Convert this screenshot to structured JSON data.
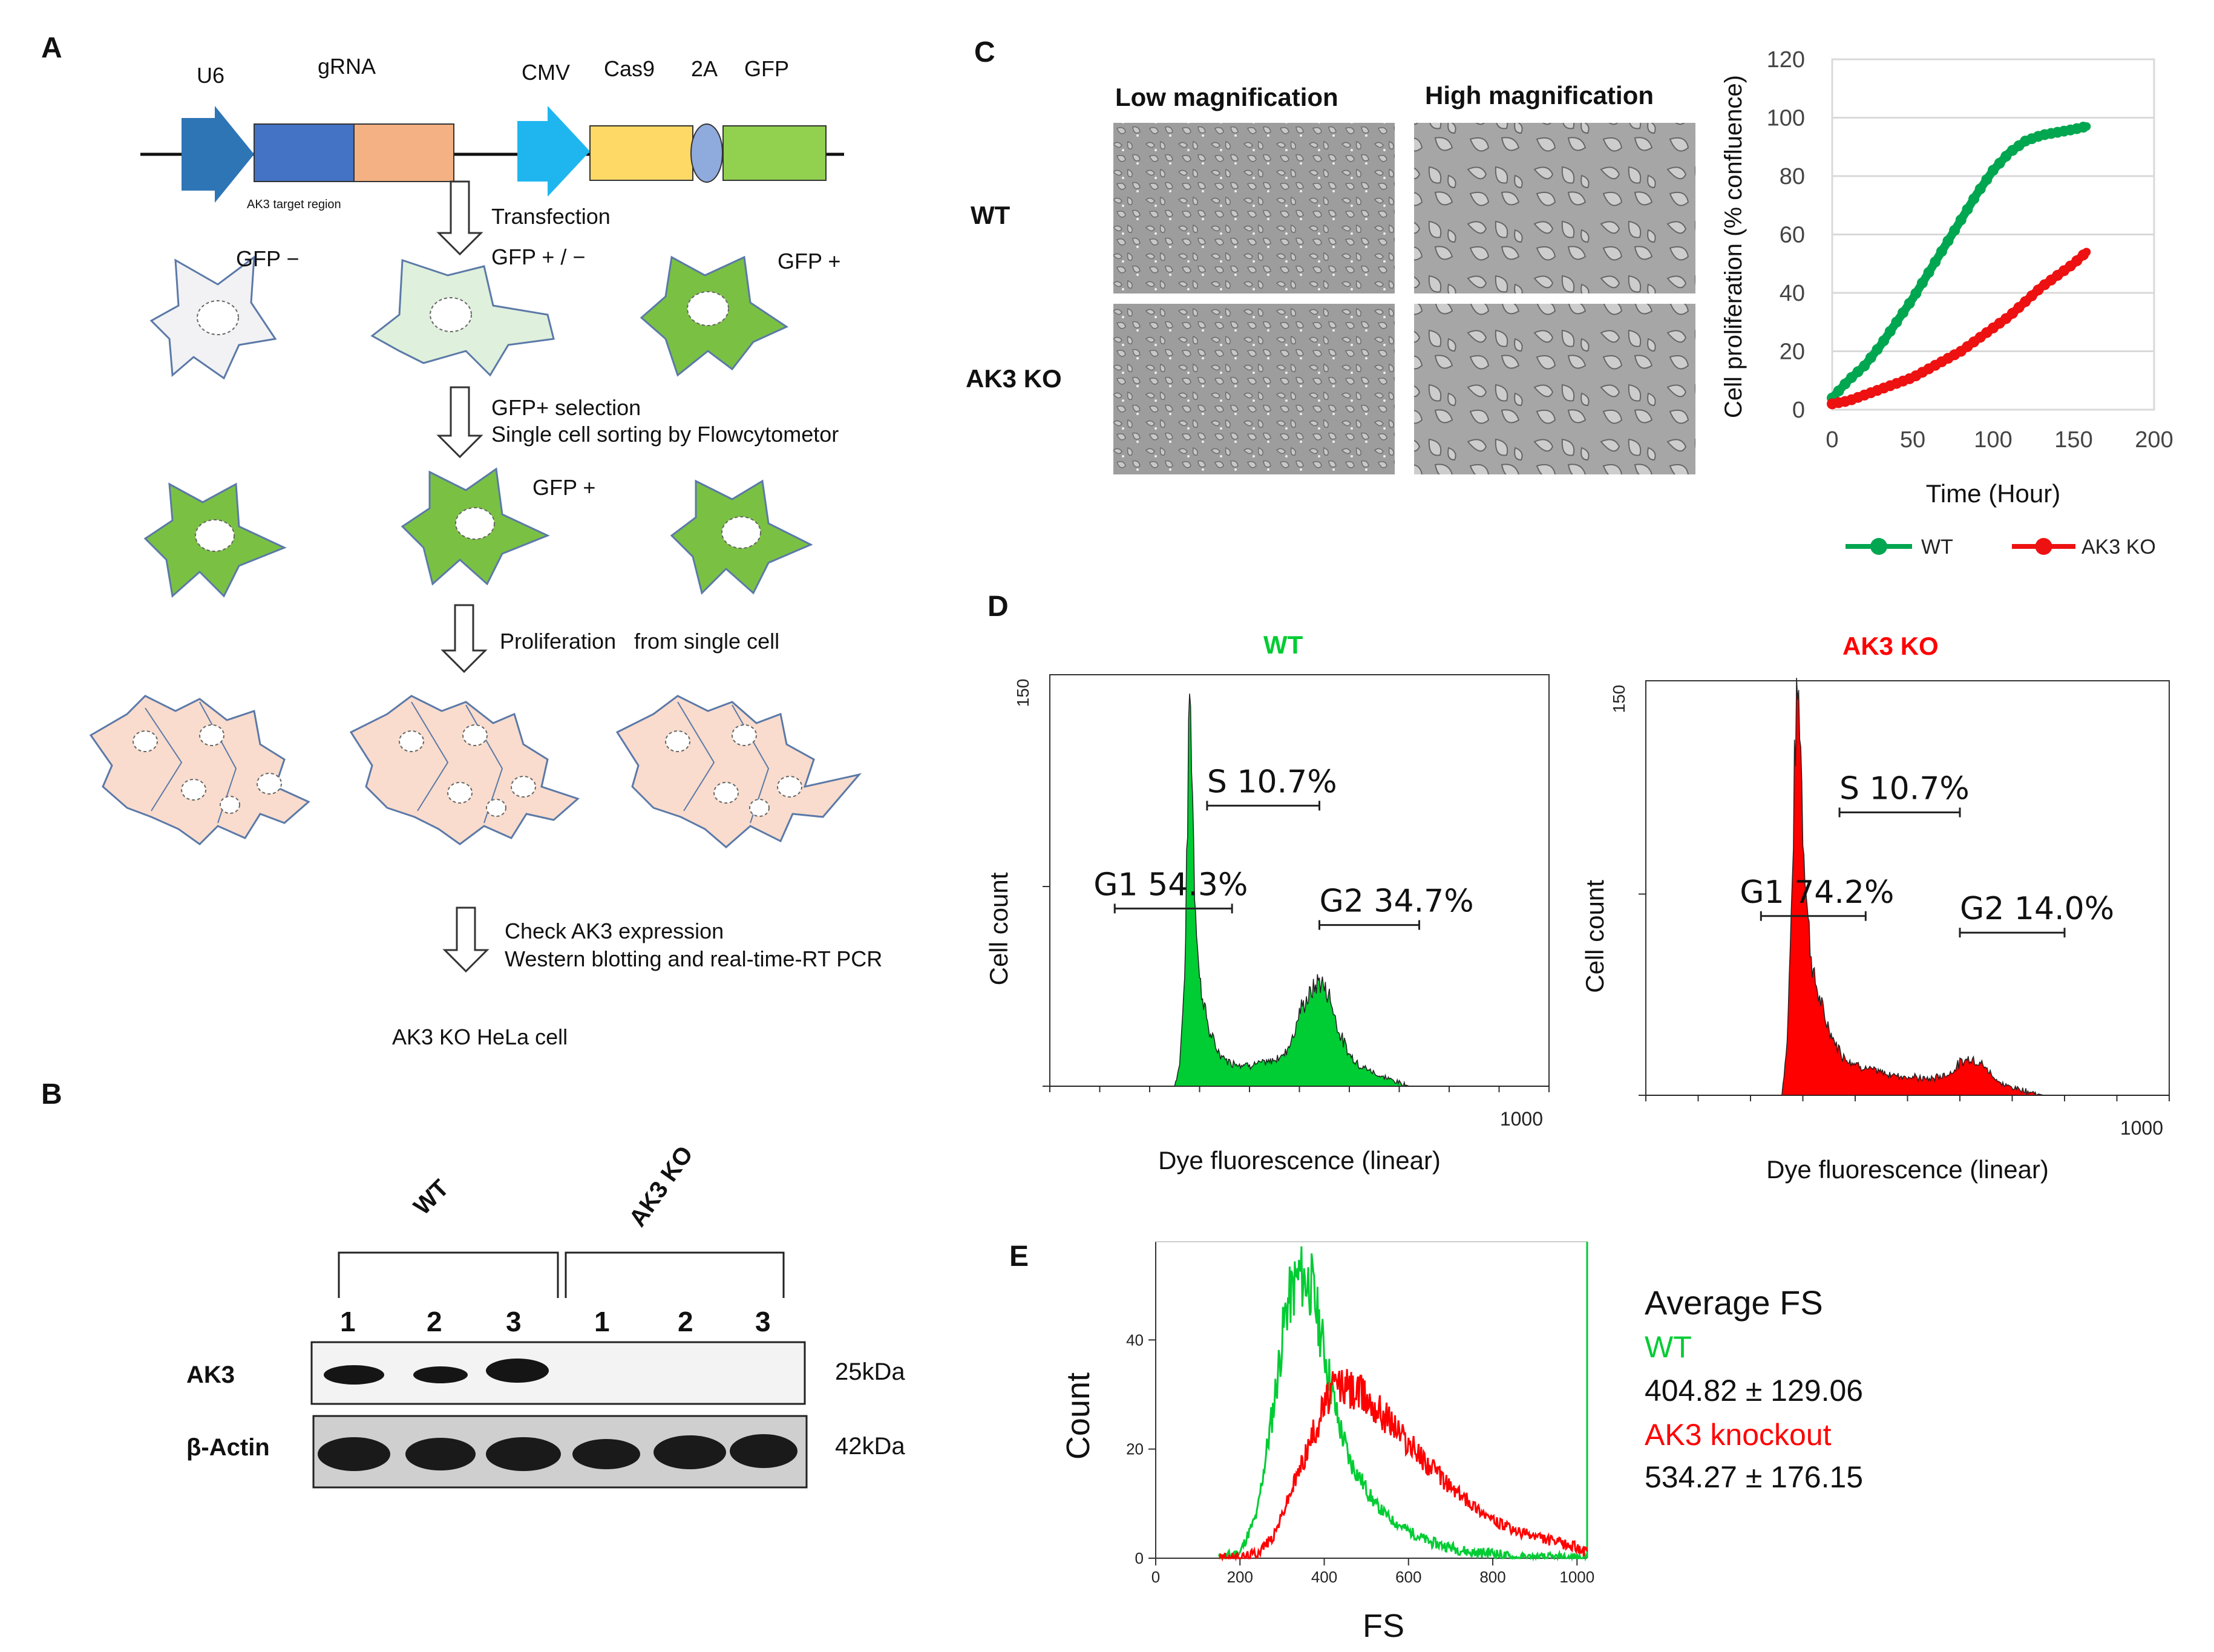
{
  "colors": {
    "wt_green": "#00cc33",
    "ko_red": "#ff0000",
    "curve_wt": "#00a650",
    "curve_ko": "#ee1111",
    "gfp_green": "#7ac143",
    "cell_light": "#dff0dc",
    "cell_grey": "#f2f2f4",
    "cell_peach": "#f9dccd",
    "u6_blue": "#2e75b6",
    "grna_blue": "#4472c4",
    "grna_orange": "#f4b183",
    "cmv_cyan": "#1fb6f0",
    "cas9_yellow": "#ffd966",
    "a2_purple": "#8faadc",
    "gfp_box": "#92d050"
  },
  "panel_a": {
    "letter": "A",
    "construct": {
      "u6": "U6",
      "grna": "gRNA",
      "cmv": "CMV",
      "cas9": "Cas9",
      "p2a": "2A",
      "gfp": "GFP",
      "target_region": "AK3 target region"
    },
    "step_transfection": "Transfection",
    "gfp_minus": "GFP −",
    "gfp_plus_minus": "GFP + / −",
    "gfp_plus_1": "GFP +",
    "step_selection_1": "GFP+ selection",
    "step_selection_2": "Single cell sorting by Flowcytometor",
    "gfp_plus_2": "GFP +",
    "step_proliferation_1": "Proliferation",
    "step_proliferation_2": "from single cell",
    "step_check_1": "Check AK3 expression",
    "step_check_2": "Western blotting and real-time-RT PCR",
    "final_label": "AK3 KO HeLa cell"
  },
  "panel_b": {
    "letter": "B",
    "group_wt": "WT",
    "group_ko": "AK3 KO",
    "lanes": [
      "1",
      "2",
      "3",
      "1",
      "2",
      "3"
    ],
    "row_ak3": "AK3",
    "row_actin": "β-Actin",
    "kda_ak3": "25kDa",
    "kda_actin": "42kDa"
  },
  "panel_c": {
    "letter": "C",
    "col_low": "Low magnification",
    "col_high": "High magnification",
    "row_wt": "WT",
    "row_ko": "AK3 KO"
  },
  "panel_d": {
    "letter": "D",
    "wt": {
      "title": "WT",
      "y_tick_150": "150",
      "ylabel": "Cell count",
      "xlabel": "Dye fluorescence (linear)",
      "x_tick": "1000",
      "g1": "G1 54.3%",
      "s": "S  10.7%",
      "g2": "G2 34.7%"
    },
    "ko": {
      "title": "AK3 KO",
      "y_tick_150": "150",
      "ylabel": "Cell count",
      "xlabel": "Dye fluorescence (linear)",
      "x_tick": "1000",
      "g1": "G1 74.2%",
      "s": "S  10.7%",
      "g2": "G2 14.0%"
    }
  },
  "panel_e": {
    "letter": "E",
    "avg_title": "Average FS",
    "wt_label": "WT",
    "wt_value": "404.82 ± 129.06",
    "ko_label": "AK3 knockout",
    "ko_value": "534.27 ± 176.15"
  },
  "chart_data": [
    {
      "id": "proliferation",
      "type": "line",
      "title": "",
      "xlabel": "Time (Hour)",
      "ylabel": "Cell proliferation (% confluence)",
      "xlim": [
        0,
        200
      ],
      "ylim": [
        0,
        120
      ],
      "x_ticks": [
        0,
        50,
        100,
        150,
        200
      ],
      "y_ticks": [
        0,
        20,
        40,
        60,
        80,
        100,
        120
      ],
      "x": [
        0,
        10,
        20,
        30,
        40,
        50,
        60,
        70,
        80,
        90,
        100,
        110,
        120,
        130,
        140,
        150,
        158
      ],
      "series": [
        {
          "name": "WT",
          "values": [
            4,
            10,
            15,
            22,
            30,
            38,
            47,
            56,
            65,
            74,
            82,
            88,
            92,
            94,
            95,
            96,
            97
          ]
        },
        {
          "name": "AK3 KO",
          "values": [
            2,
            3,
            5,
            7,
            9,
            11,
            14,
            17,
            20,
            24,
            28,
            32,
            37,
            42,
            46,
            50,
            54
          ]
        }
      ],
      "legend": "bottom"
    },
    {
      "id": "cell_cycle_wt",
      "type": "area",
      "title": "WT",
      "xlabel": "Dye fluorescence (linear)",
      "ylabel": "Cell count",
      "xlim": [
        0,
        1000
      ],
      "ylim": [
        0,
        150
      ],
      "x": [
        0,
        250,
        260,
        270,
        275,
        280,
        285,
        290,
        300,
        320,
        340,
        360,
        400,
        440,
        470,
        490,
        500,
        520,
        540,
        560,
        580,
        600,
        620,
        640,
        660,
        690,
        720,
        760,
        1000
      ],
      "values": [
        0,
        0,
        8,
        40,
        90,
        150,
        120,
        75,
        40,
        20,
        12,
        9,
        8,
        9,
        12,
        20,
        28,
        34,
        40,
        34,
        20,
        12,
        8,
        6,
        4,
        2,
        0,
        0,
        0
      ],
      "gates": [
        {
          "name": "G1",
          "from": 130,
          "to": 365,
          "percent": 54.3
        },
        {
          "name": "S",
          "from": 315,
          "to": 540,
          "percent": 10.7
        },
        {
          "name": "G2",
          "from": 540,
          "to": 740,
          "percent": 34.7
        }
      ]
    },
    {
      "id": "cell_cycle_ko",
      "type": "area",
      "title": "AK3 KO",
      "xlabel": "Dye fluorescence (linear)",
      "ylabel": "Cell count",
      "xlim": [
        0,
        1000
      ],
      "ylim": [
        0,
        150
      ],
      "x": [
        0,
        260,
        270,
        280,
        285,
        290,
        295,
        300,
        310,
        320,
        340,
        360,
        380,
        420,
        460,
        500,
        540,
        580,
        600,
        620,
        640,
        660,
        680,
        720,
        760,
        1000
      ],
      "values": [
        0,
        0,
        20,
        80,
        130,
        150,
        140,
        100,
        65,
        45,
        30,
        20,
        14,
        10,
        8,
        7,
        6,
        8,
        12,
        14,
        12,
        8,
        4,
        2,
        0,
        0
      ],
      "gates": [
        {
          "name": "G1",
          "from": 220,
          "to": 420,
          "percent": 74.2
        },
        {
          "name": "S",
          "from": 370,
          "to": 600,
          "percent": 10.7
        },
        {
          "name": "G2",
          "from": 600,
          "to": 800,
          "percent": 14.0
        }
      ]
    },
    {
      "id": "forward_scatter",
      "type": "line",
      "title": "",
      "xlabel": "FS",
      "ylabel": "Count",
      "xlim": [
        0,
        1024
      ],
      "ylim": [
        0,
        58
      ],
      "x_ticks": [
        0,
        200,
        400,
        600,
        800,
        1000
      ],
      "y_ticks": [
        0,
        20,
        40
      ],
      "x": [
        150,
        200,
        240,
        280,
        310,
        340,
        370,
        400,
        430,
        460,
        490,
        520,
        560,
        600,
        650,
        700,
        750,
        800,
        850,
        900,
        950,
        1000,
        1024
      ],
      "series": [
        {
          "name": "WT",
          "values": [
            0,
            1,
            8,
            28,
            46,
            52,
            50,
            38,
            26,
            18,
            14,
            10,
            7,
            5,
            3,
            2,
            1,
            1,
            0,
            0,
            0,
            0,
            0
          ]
        },
        {
          "name": "AK3 knockout",
          "values": [
            0,
            0,
            1,
            4,
            10,
            16,
            22,
            28,
            32,
            31,
            30,
            28,
            25,
            21,
            17,
            13,
            10,
            7,
            5,
            4,
            3,
            2,
            1
          ]
        }
      ]
    }
  ]
}
